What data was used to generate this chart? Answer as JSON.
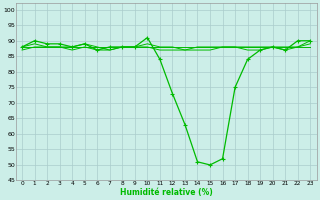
{
  "xlabel": "Humidité relative (%)",
  "bg_color": "#cceee8",
  "grid_color": "#aacccc",
  "line_color": "#00bb00",
  "xlim": [
    -0.5,
    23.5
  ],
  "ylim": [
    45,
    102
  ],
  "yticks": [
    45,
    50,
    55,
    60,
    65,
    70,
    75,
    80,
    85,
    90,
    95,
    100
  ],
  "xticks": [
    0,
    1,
    2,
    3,
    4,
    5,
    6,
    7,
    8,
    9,
    10,
    11,
    12,
    13,
    14,
    15,
    16,
    17,
    18,
    19,
    20,
    21,
    22,
    23
  ],
  "series_main": [
    88,
    90,
    89,
    89,
    88,
    89,
    87,
    88,
    88,
    88,
    91,
    84,
    73,
    63,
    51,
    50,
    52,
    75,
    84,
    87,
    88,
    87,
    90,
    90
  ],
  "series_flat1": [
    88,
    89,
    88,
    88,
    88,
    89,
    88,
    87,
    88,
    88,
    89,
    88,
    88,
    87,
    88,
    88,
    88,
    88,
    88,
    88,
    88,
    88,
    88,
    90
  ],
  "series_flat2": [
    88,
    88,
    88,
    88,
    88,
    88,
    88,
    88,
    88,
    88,
    88,
    88,
    88,
    88,
    88,
    88,
    88,
    88,
    88,
    88,
    88,
    88,
    88,
    88
  ],
  "series_flat3": [
    87,
    88,
    88,
    88,
    87,
    88,
    87,
    87,
    88,
    88,
    88,
    87,
    87,
    87,
    87,
    87,
    88,
    88,
    87,
    87,
    88,
    87,
    88,
    89
  ]
}
